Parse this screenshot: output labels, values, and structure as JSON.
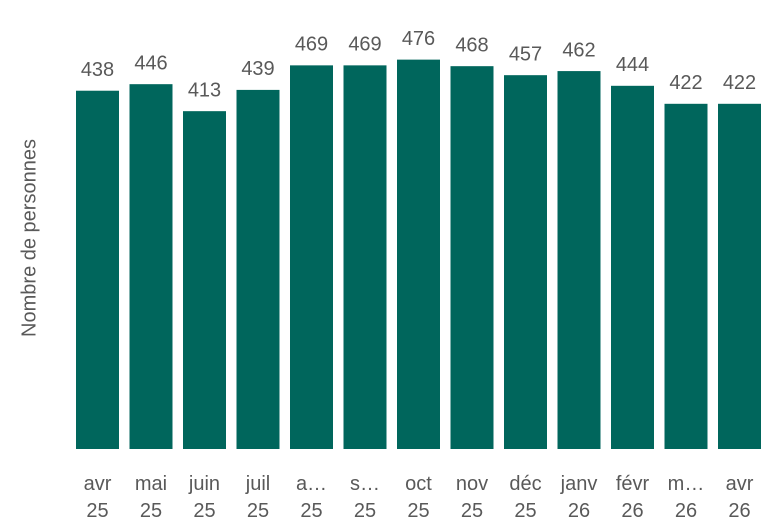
{
  "chart_data": {
    "type": "bar",
    "y_label": "Nombre de personnes",
    "categories": [
      "avr 25",
      "mai 25",
      "juin 25",
      "juil 25",
      "a… 25",
      "s… 25",
      "oct 25",
      "nov 25",
      "déc 25",
      "janv 26",
      "févr 26",
      "m… 26",
      "avr 26"
    ],
    "values": [
      438,
      446,
      413,
      439,
      469,
      469,
      476,
      468,
      457,
      462,
      444,
      422,
      422
    ],
    "color": "#00665c",
    "ylim": [
      0,
      500
    ]
  }
}
